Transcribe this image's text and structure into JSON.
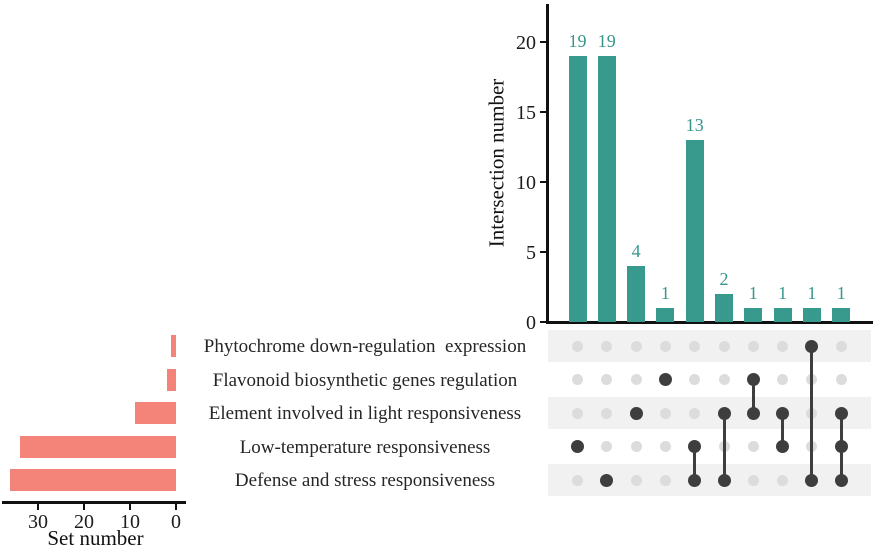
{
  "colors": {
    "intersection_bar": "#389A8C",
    "intersection_value_text": "#35968A",
    "set_bar": "#F4837A",
    "active_dot": "#3E3E3E",
    "inactive_dot": "#DCDCDC",
    "stripe": "#F1F1F1",
    "axis": "#111111",
    "text": "#262626"
  },
  "chart_data": {
    "type": "upset",
    "sets": [
      {
        "label": "Phytochrome down-regulation  expression",
        "size": 1
      },
      {
        "label": "Flavonoid biosynthetic genes regulation",
        "size": 2
      },
      {
        "label": "Element involved in light responsiveness",
        "size": 9
      },
      {
        "label": "Low-temperature responsiveness",
        "size": 34
      },
      {
        "label": "Defense and stress responsiveness",
        "size": 36
      }
    ],
    "intersections": [
      {
        "value": 19,
        "members": [
          3
        ]
      },
      {
        "value": 19,
        "members": [
          4
        ]
      },
      {
        "value": 4,
        "members": [
          2
        ]
      },
      {
        "value": 1,
        "members": [
          1
        ]
      },
      {
        "value": 13,
        "members": [
          3,
          4
        ]
      },
      {
        "value": 2,
        "members": [
          2,
          4
        ]
      },
      {
        "value": 1,
        "members": [
          1,
          2
        ]
      },
      {
        "value": 1,
        "members": [
          2,
          3
        ]
      },
      {
        "value": 1,
        "members": [
          0,
          4
        ]
      },
      {
        "value": 1,
        "members": [
          2,
          3,
          4
        ]
      }
    ],
    "set_axis": {
      "label": "Set number",
      "ticks": [
        30,
        20,
        10,
        0
      ]
    },
    "intersection_axis": {
      "label": "Intersection number",
      "ticks": [
        0,
        5,
        10,
        15,
        20
      ]
    }
  }
}
